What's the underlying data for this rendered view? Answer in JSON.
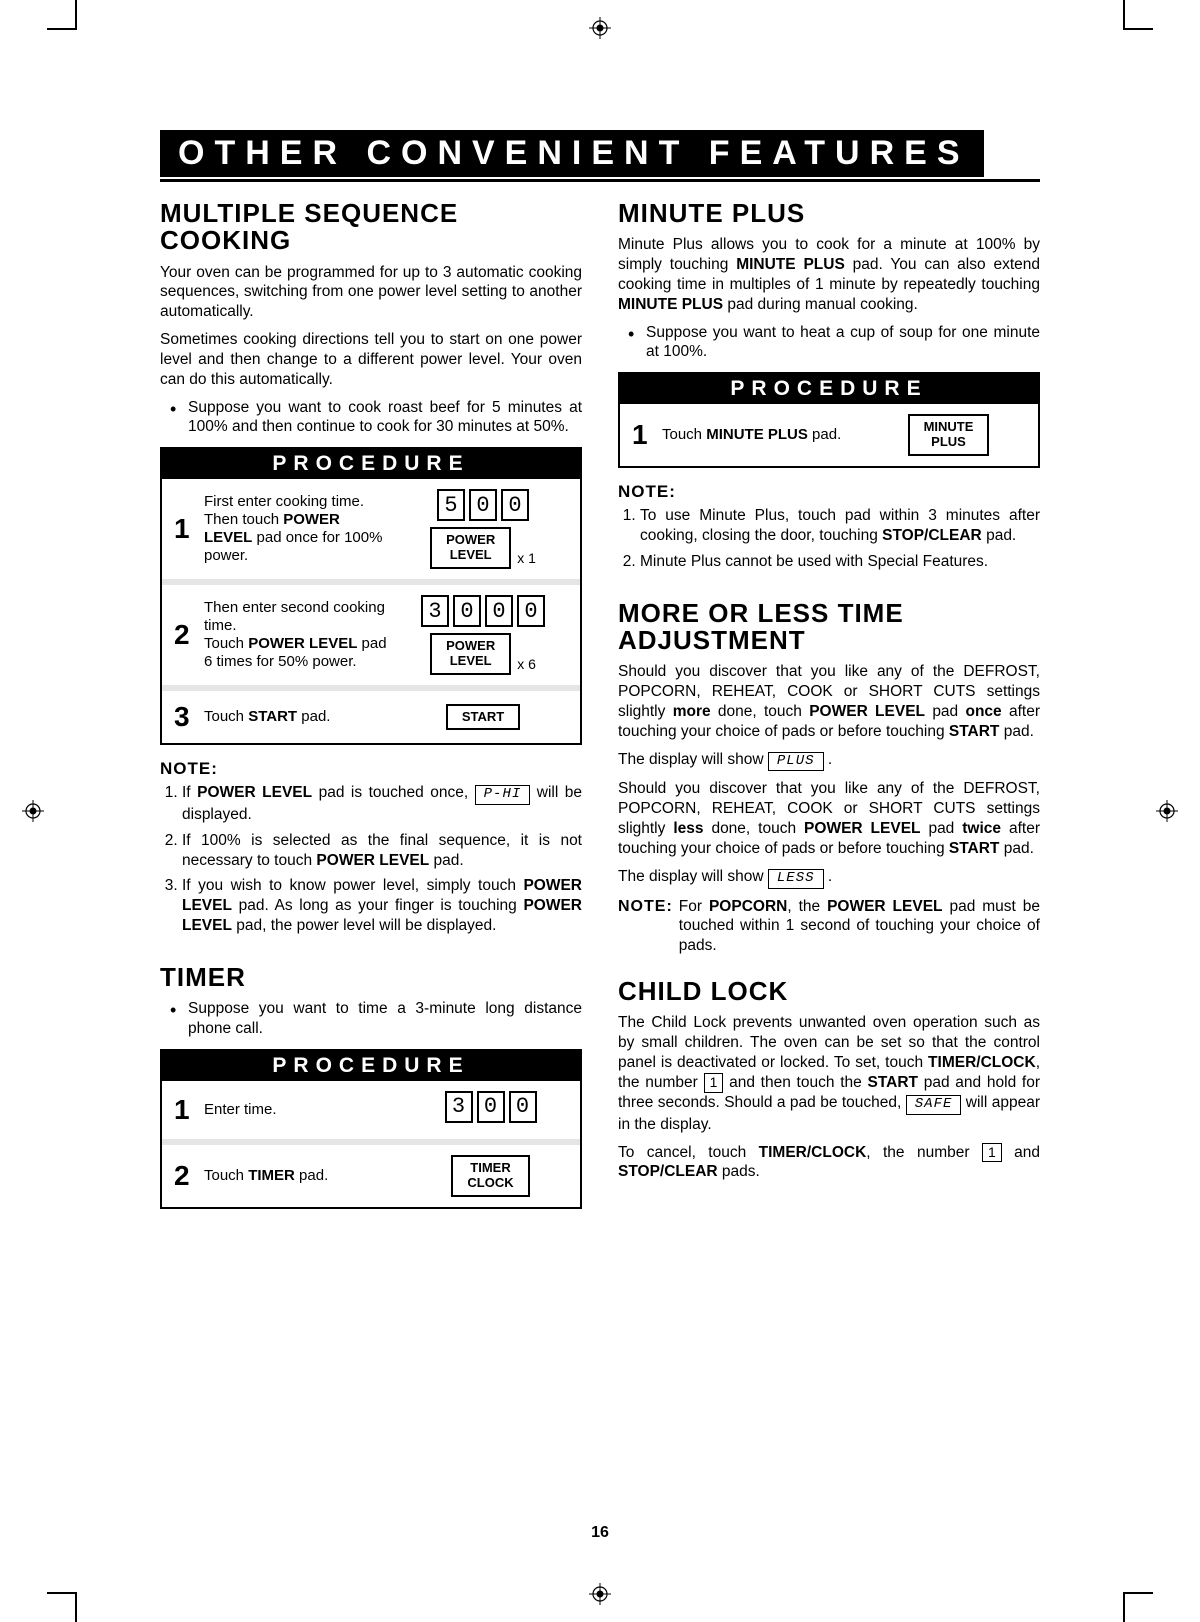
{
  "banner": "OTHER CONVENIENT FEATURES",
  "pageNum": "16",
  "procLabel": "PROCEDURE",
  "left": {
    "msc": {
      "title": "MULTIPLE SEQUENCE COOKING",
      "p1": "Your oven can be programmed for up to 3 automatic cooking sequences, switching from one power level setting to another automatically.",
      "p2": "Sometimes cooking directions tell you to start on one power level and then change to a different power level. Your oven can do this automatically.",
      "bullet": "Suppose you want to cook roast beef for 5 minutes at 100% and then continue to cook for 30 minutes at 50%.",
      "steps": [
        {
          "num": "1",
          "text": "First enter cooking time. Then touch <strong>POWER LEVEL</strong> pad once for 100% power.",
          "digits": [
            "5",
            "0",
            "0"
          ],
          "pad": "POWER<br>LEVEL",
          "mult": "x 1"
        },
        {
          "num": "2",
          "text": "Then enter second cooking time.<br>Touch <strong>POWER LEVEL</strong> pad 6 times for 50% power.",
          "digits": [
            "3",
            "0",
            "0",
            "0"
          ],
          "pad": "POWER<br>LEVEL",
          "mult": "x 6"
        },
        {
          "num": "3",
          "text": "Touch <strong>START</strong> pad.",
          "pad": "START"
        }
      ],
      "noteLabel": "NOTE:",
      "notes": [
        "If <strong>POWER LEVEL</strong> pad is touched once, <span class=\"disp\">P-HI</span> will be displayed.",
        "If 100% is selected as the final sequence, it is not necessary to touch <strong>POWER LEVEL</strong> pad.",
        "If you wish to know power level, simply touch  <strong>POWER LEVEL</strong> pad. As long as your finger is touching <strong>POWER LEVEL</strong> pad, the power level will be displayed."
      ]
    },
    "timer": {
      "title": "TIMER",
      "bullet": "Suppose you want to time a 3-minute long distance phone call.",
      "steps": [
        {
          "num": "1",
          "text": "Enter time.",
          "digits": [
            "3",
            "0",
            "0"
          ]
        },
        {
          "num": "2",
          "text": "Touch <strong>TIMER</strong> pad.",
          "pad": "TIMER<br>CLOCK"
        }
      ]
    }
  },
  "right": {
    "mp": {
      "title": "MINUTE PLUS",
      "p1": "Minute Plus allows you to cook for a minute at 100% by simply touching <strong>MINUTE PLUS</strong> pad. You can also extend cooking time in multiples of 1 minute by repeatedly touching <strong>MINUTE PLUS</strong> pad during manual cooking.",
      "bullet": "Suppose you want to heat a cup of soup for one minute at 100%.",
      "step": {
        "num": "1",
        "text": "Touch <strong>MINUTE PLUS</strong> pad.",
        "pad": "MINUTE<br>PLUS"
      },
      "noteLabel": "NOTE:",
      "notes": [
        "To use Minute Plus, touch pad within 3 minutes after cooking, closing the door, touching <strong>STOP/CLEAR</strong> pad.",
        "Minute Plus cannot be used with Special Features."
      ]
    },
    "adj": {
      "title": "MORE OR LESS TIME ADJUSTMENT",
      "p1": "Should you discover that you like any of the DEFROST, POPCORN, REHEAT, COOK or SHORT CUTS settings slightly <strong>more</strong> done, touch <strong>POWER LEVEL</strong> pad <strong>once</strong> after touching your choice of pads or before touching <strong>START</strong> pad.",
      "disp1": "The display will show  <span class=\"disp\">PLUS</span> .",
      "p2": "Should you discover that you like any of the DEFROST, POPCORN, REHEAT, COOK or SHORT CUTS settings slightly <strong>less</strong> done, touch <strong>POWER LEVEL</strong> pad <strong>twice</strong> after touching your choice of pads or before touching <strong>START</strong> pad.",
      "disp2": "The display will show  <span class=\"disp\">LESS</span> .",
      "noteLabel": "NOTE:",
      "noteText": "For <strong>POPCORN</strong>, the <strong>POWER LEVEL</strong> pad must be touched within 1 second of touching your choice of pads."
    },
    "cl": {
      "title": "CHILD LOCK",
      "p1": "The Child Lock prevents unwanted oven operation such as by small children. The oven can be set so that the control panel is deactivated or locked. To set, touch <strong>TIMER/CLOCK</strong>, the number <span class=\"keycap\">1</span> and then touch the <strong>START</strong> pad and hold for three seconds. Should a pad be touched,  <span class=\"disp\">SAFE</span>  will appear in the display.",
      "p2": "To cancel, touch <strong>TIMER/CLOCK</strong>, the number <span class=\"keycap\">1</span> and <strong>STOP/CLEAR</strong> pads."
    }
  }
}
